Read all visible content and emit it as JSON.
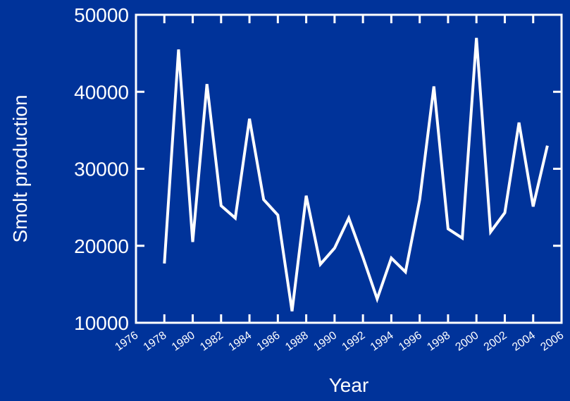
{
  "chart_data": {
    "type": "line",
    "title": "",
    "xlabel": "Year",
    "ylabel": "Smolt production",
    "xlim": [
      1976,
      2006
    ],
    "ylim": [
      10000,
      50000
    ],
    "x_ticks": [
      1976,
      1978,
      1980,
      1982,
      1984,
      1986,
      1988,
      1990,
      1992,
      1994,
      1996,
      1998,
      2000,
      2002,
      2004,
      2006
    ],
    "x_tick_labels": [
      "1976",
      "1978",
      "1980",
      "1982",
      "1984",
      "1986",
      "1988",
      "1990",
      "1992",
      "1994",
      "1996",
      "1998",
      "2000",
      "2002",
      "2004",
      "2006"
    ],
    "y_ticks": [
      10000,
      20000,
      30000,
      40000,
      50000
    ],
    "y_tick_labels": [
      "10000",
      "20000",
      "30000",
      "40000",
      "50000"
    ],
    "grid": false,
    "colors": {
      "background": "#00339a",
      "line": "#ffffff",
      "axis": "#ffffff"
    },
    "series": [
      {
        "x": [
          1978,
          1979,
          1980,
          1981,
          1982,
          1983,
          1984,
          1985,
          1986,
          1987,
          1988,
          1989,
          1990,
          1991,
          1992,
          1993,
          1994,
          1995,
          1996,
          1997,
          1998,
          1999,
          2000,
          2001,
          2002,
          2003,
          2004,
          2005
        ],
        "y": [
          17700,
          45500,
          20500,
          41000,
          25200,
          23600,
          36500,
          26000,
          24000,
          11500,
          26500,
          17600,
          19700,
          23600,
          18500,
          13100,
          18400,
          16600,
          26000,
          40700,
          22200,
          21000,
          47000,
          21800,
          24300,
          36000,
          25100,
          33000
        ]
      }
    ]
  }
}
